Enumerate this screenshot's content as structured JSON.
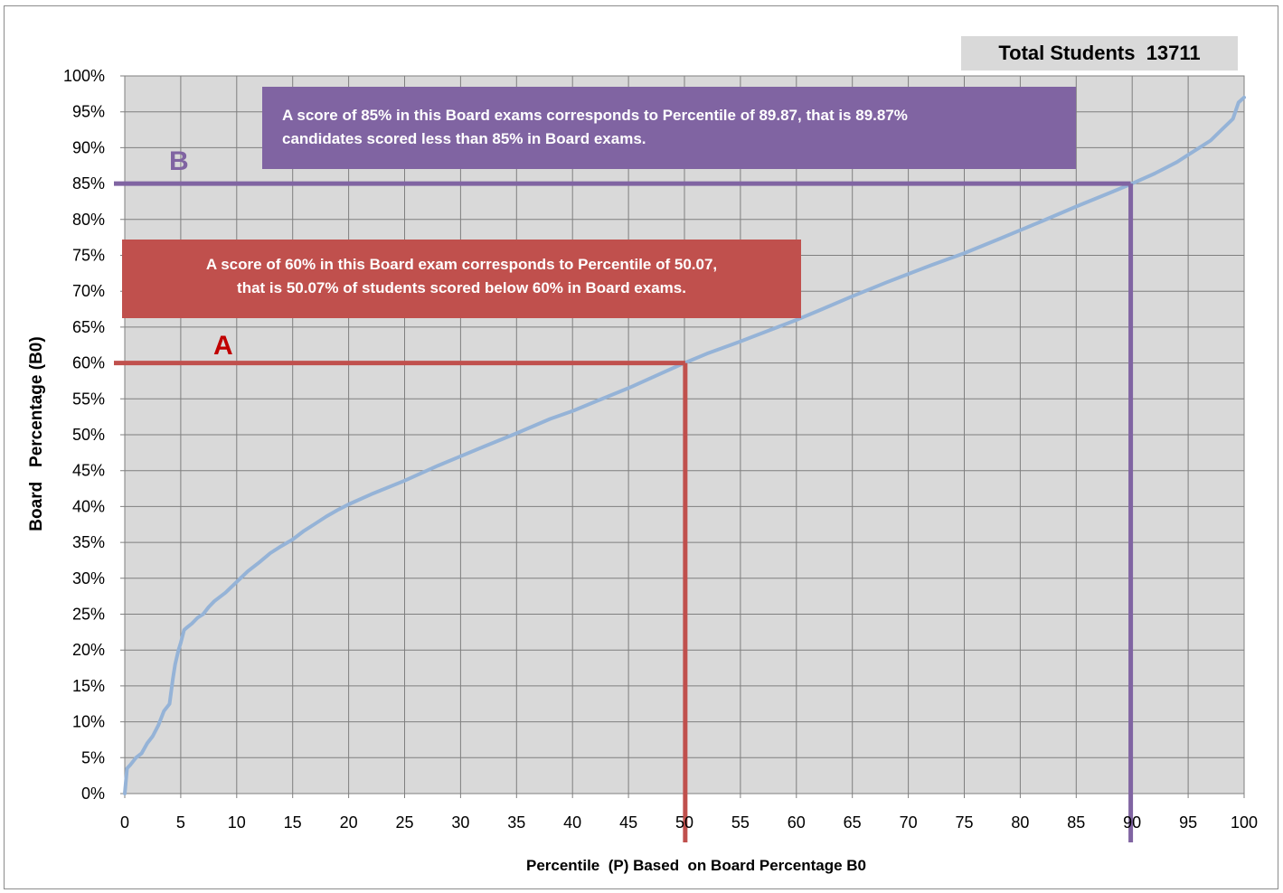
{
  "chart_data": {
    "type": "line",
    "title": "",
    "xlabel": "Percentile  (P) Based  on Board Percentage B0",
    "ylabel": "Board   Percentage (B0)",
    "xlim": [
      0,
      100
    ],
    "ylim": [
      0,
      100
    ],
    "x_ticks": [
      "0",
      "5",
      "10",
      "15",
      "20",
      "25",
      "30",
      "35",
      "40",
      "45",
      "50",
      "55",
      "60",
      "65",
      "70",
      "75",
      "80",
      "85",
      "90",
      "95",
      "100"
    ],
    "y_ticks": [
      "0%",
      "5%",
      "10%",
      "15%",
      "20%",
      "25%",
      "30%",
      "35%",
      "40%",
      "45%",
      "50%",
      "55%",
      "60%",
      "65%",
      "70%",
      "75%",
      "80%",
      "85%",
      "90%",
      "95%",
      "100%"
    ],
    "grid": true,
    "series": [
      {
        "color": "#95b3d7",
        "x": [
          0,
          0.2,
          0.5,
          1,
          1.5,
          2,
          2.5,
          3,
          3.5,
          4,
          4.3,
          4.5,
          4.8,
          5,
          5.3,
          5.6,
          6,
          6.5,
          7,
          7.5,
          8,
          9,
          10,
          11,
          12,
          13,
          14,
          15,
          16,
          17,
          18,
          19,
          20,
          22,
          25,
          28,
          30,
          32,
          35,
          38,
          40,
          42,
          45,
          48,
          50,
          52,
          55,
          58,
          60,
          62,
          65,
          68,
          70,
          72,
          75,
          78,
          80,
          82,
          85,
          88,
          90,
          92,
          94,
          95,
          96,
          97,
          98,
          99,
          99.5,
          100
        ],
        "y": [
          0,
          3.5,
          4,
          5,
          5.6,
          7,
          8,
          9.5,
          11.5,
          12.5,
          16,
          18,
          20,
          21,
          22.8,
          23.2,
          23.7,
          24.5,
          25,
          26,
          26.8,
          28,
          29.5,
          31,
          32.2,
          33.5,
          34.5,
          35.4,
          36.6,
          37.6,
          38.6,
          39.5,
          40.3,
          41.7,
          43.6,
          45.7,
          47,
          48.3,
          50.2,
          52.2,
          53.3,
          54.6,
          56.5,
          58.6,
          60,
          61.3,
          63,
          64.8,
          66,
          67.3,
          69.3,
          71.2,
          72.4,
          73.6,
          75.3,
          77.2,
          78.5,
          79.8,
          81.8,
          83.7,
          85,
          86.4,
          88,
          89,
          90,
          91,
          92.5,
          94,
          96.3,
          97
        ]
      }
    ],
    "reference_lines": [
      {
        "label": "A",
        "x": 50.07,
        "y": 60,
        "color": "#c0504d",
        "label_color": "#c00000"
      },
      {
        "label": "B",
        "x": 89.87,
        "y": 85,
        "color": "#8064a2",
        "label_color": "#8064a2"
      }
    ],
    "colors": {
      "plot_bg": "#d9d9d9",
      "grid": "#7f7f7f"
    }
  },
  "annotations": {
    "total": "Total Students  13711",
    "note_b": [
      "A score of 85% in this Board exams corresponds to Percentile of 89.87, that is  89.87%",
      "candidates scored less than 85%  in Board exams."
    ],
    "note_a": [
      "A score of 60% in this Board exam corresponds to Percentile of  50.07,",
      "that  is 50.07% of students scored below 60% in Board exams."
    ],
    "marker_a": "A",
    "marker_b": "B"
  }
}
